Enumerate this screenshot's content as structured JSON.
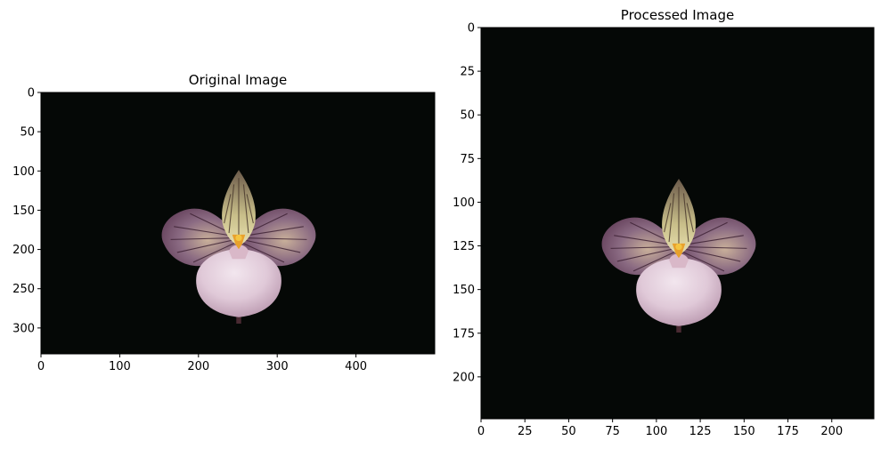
{
  "chart_data": [
    {
      "type": "image",
      "title": "Original Image",
      "xlim": [
        0,
        500
      ],
      "ylim": [
        333,
        0
      ],
      "x_ticks": [
        0,
        100,
        200,
        300,
        400
      ],
      "y_ticks": [
        0,
        50,
        100,
        150,
        200,
        250,
        300
      ],
      "grid": false,
      "image": {
        "content": "pink and purple lady's slipper orchid on black background",
        "background_color": "#050806",
        "petal_color": "#6a4a64",
        "pouch_color": "#e0c9d8",
        "center_color": "#e8a12c"
      }
    },
    {
      "type": "image",
      "title": "Processed Image",
      "xlim": [
        0,
        224
      ],
      "ylim": [
        224,
        0
      ],
      "x_ticks": [
        0,
        25,
        50,
        75,
        100,
        125,
        150,
        175,
        200
      ],
      "y_ticks": [
        0,
        25,
        50,
        75,
        100,
        125,
        150,
        175,
        200
      ],
      "grid": false,
      "image": {
        "content": "same orchid resized and stretched to 224x224",
        "background_color": "#050806",
        "petal_color": "#6a4a64",
        "pouch_color": "#e0c9d8",
        "center_color": "#e8a12c"
      }
    }
  ]
}
